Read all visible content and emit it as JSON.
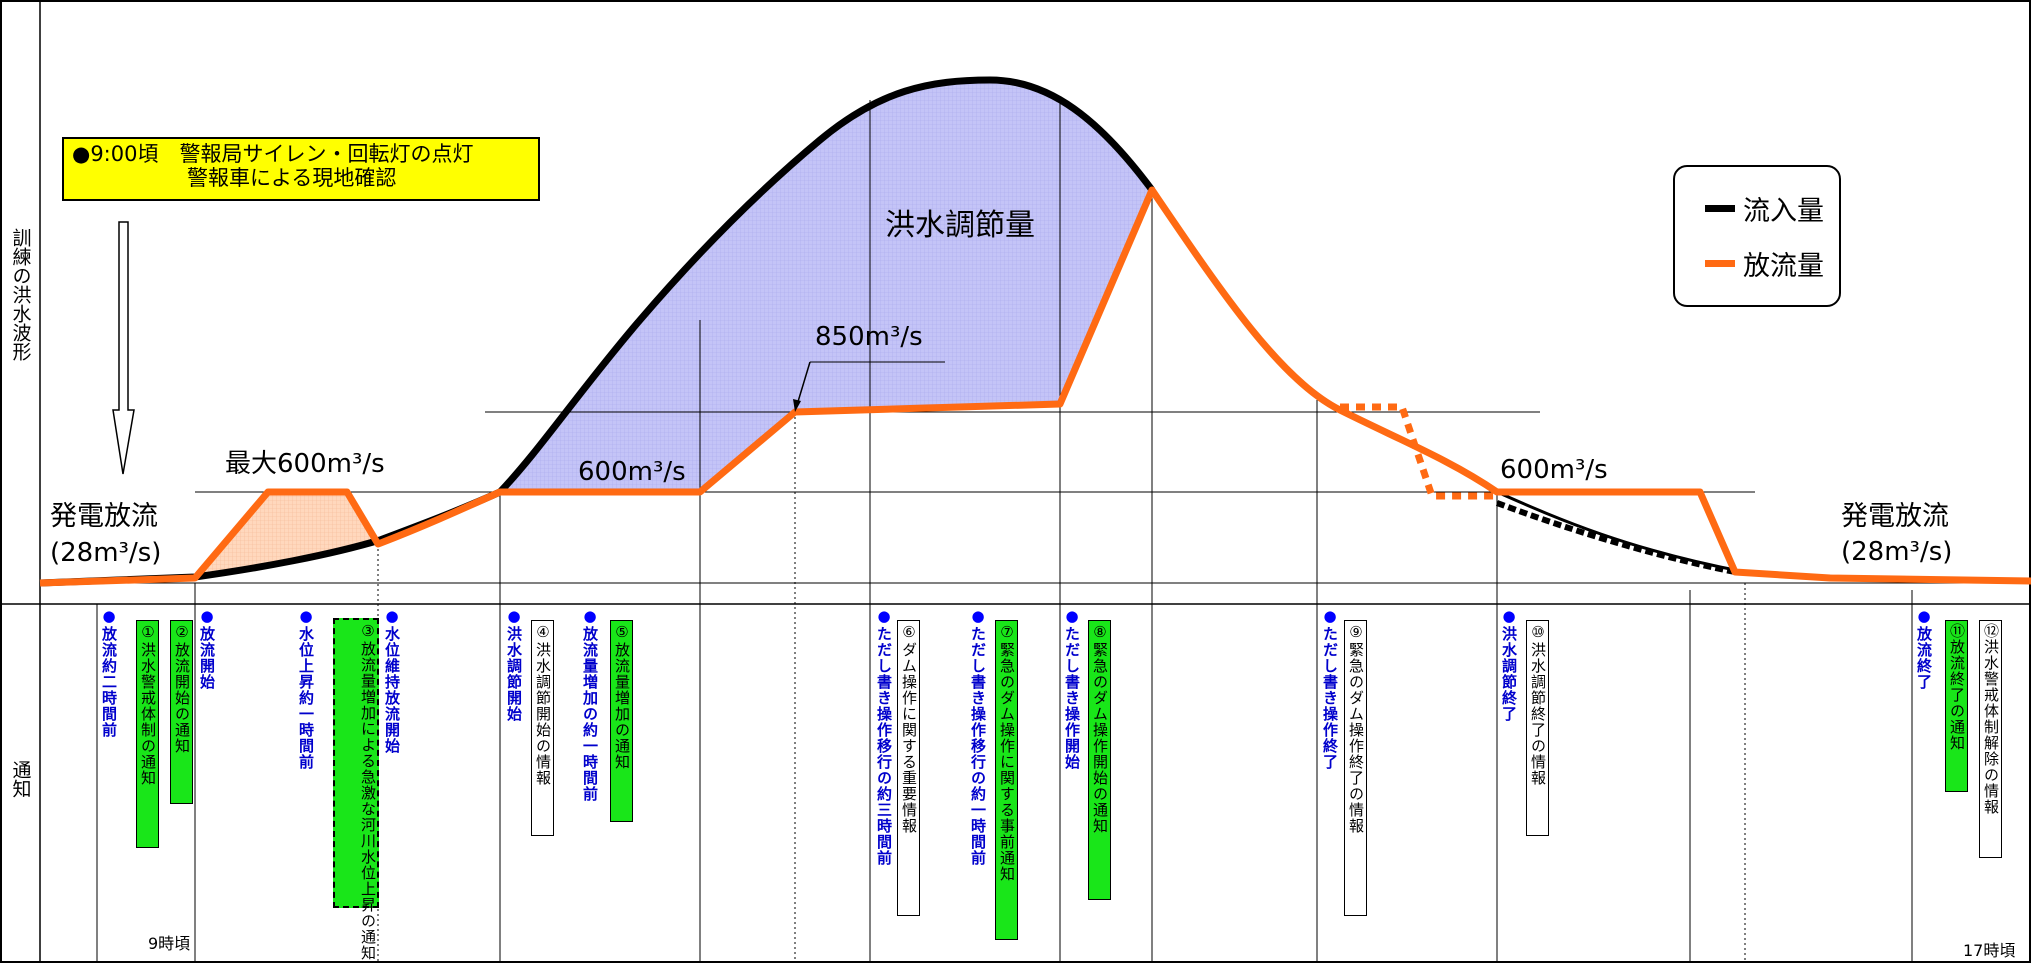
{
  "section_labels": {
    "waveform": "訓練の洪水波形",
    "notification": "通知"
  },
  "notice": {
    "line1": "●9:00頃　警報局サイレン・回転灯の点灯",
    "line2": "警報車による現地確認"
  },
  "legend": {
    "inflow": "流入量",
    "outflow": "放流量",
    "inflow_color": "#000000",
    "outflow_color": "#ff6a13"
  },
  "chart_labels": {
    "power_release_left": "発電放流",
    "power_release_left_value": "(28m³/s)",
    "max600": "最大600m³/s",
    "level600_a": "600m³/s",
    "level850": "850m³/s",
    "flood_control": "洪水調節量",
    "level600_b": "600m³/s",
    "power_release_right": "発電放流",
    "power_release_right_value": "(28m³/s)"
  },
  "colors": {
    "fill_blue": "#b9b9f5",
    "fill_peach": "#ffd2b4",
    "green_box": "#19e619",
    "blue_text": "#0000cc"
  },
  "notifications": [
    {
      "id": "n1",
      "bullet": "●",
      "text": "放流約二時間前",
      "style": "blue"
    },
    {
      "id": "n2",
      "text": "①洪水警戒体制の通知",
      "style": "green"
    },
    {
      "id": "n3",
      "text": "②放流開始の通知",
      "style": "green"
    },
    {
      "id": "n4",
      "bullet": "●",
      "text": "放流開始",
      "style": "blue"
    },
    {
      "id": "n5",
      "bullet": "●",
      "text": "水位上昇約一時間前",
      "style": "blue"
    },
    {
      "id": "n6",
      "text": "③放流量増加による急激な",
      "style": "green-dashed"
    },
    {
      "id": "n7",
      "text": "河川水位上昇の通知",
      "style": "green-dashed-inner"
    },
    {
      "id": "n8",
      "bullet": "●",
      "text": "水位維持放流開始",
      "style": "blue"
    },
    {
      "id": "n9",
      "bullet": "●",
      "text": "洪水調節開始",
      "style": "blue"
    },
    {
      "id": "n10",
      "text": "④洪水調節開始の情報",
      "style": "white"
    },
    {
      "id": "n11",
      "bullet": "●",
      "text": "放流量増加の約一時間前",
      "style": "blue"
    },
    {
      "id": "n12",
      "text": "⑤放流量増加の通知",
      "style": "green"
    },
    {
      "id": "n13",
      "bullet": "●",
      "text": "ただし書き操作移行の約三時間前",
      "style": "blue"
    },
    {
      "id": "n14",
      "text": "⑥ダム操作に関する重要情報",
      "style": "white"
    },
    {
      "id": "n15",
      "bullet": "●",
      "text": "ただし書き操作移行の約一時間前",
      "style": "blue"
    },
    {
      "id": "n16",
      "text": "⑦緊急のダム操作に関する事前通知",
      "style": "green"
    },
    {
      "id": "n17",
      "bullet": "●",
      "text": "ただし書き操作開始",
      "style": "blue"
    },
    {
      "id": "n18",
      "text": "⑧緊急のダム操作開始の通知",
      "style": "green"
    },
    {
      "id": "n19",
      "bullet": "●",
      "text": "ただし書き操作終了",
      "style": "blue"
    },
    {
      "id": "n20",
      "text": "⑨緊急のダム操作終了の情報",
      "style": "white"
    },
    {
      "id": "n21",
      "bullet": "●",
      "text": "洪水調節終了",
      "style": "blue"
    },
    {
      "id": "n22",
      "text": "⑩洪水調節終了の情報",
      "style": "white"
    },
    {
      "id": "n23",
      "bullet": "●",
      "text": "放流終了",
      "style": "blue"
    },
    {
      "id": "n24",
      "text": "⑪放流終了の通知",
      "style": "green"
    },
    {
      "id": "n25",
      "text": "⑫洪水警戒体制解除の情報",
      "style": "white"
    }
  ],
  "time_labels": {
    "start": "9時頃",
    "end": "17時頃"
  }
}
